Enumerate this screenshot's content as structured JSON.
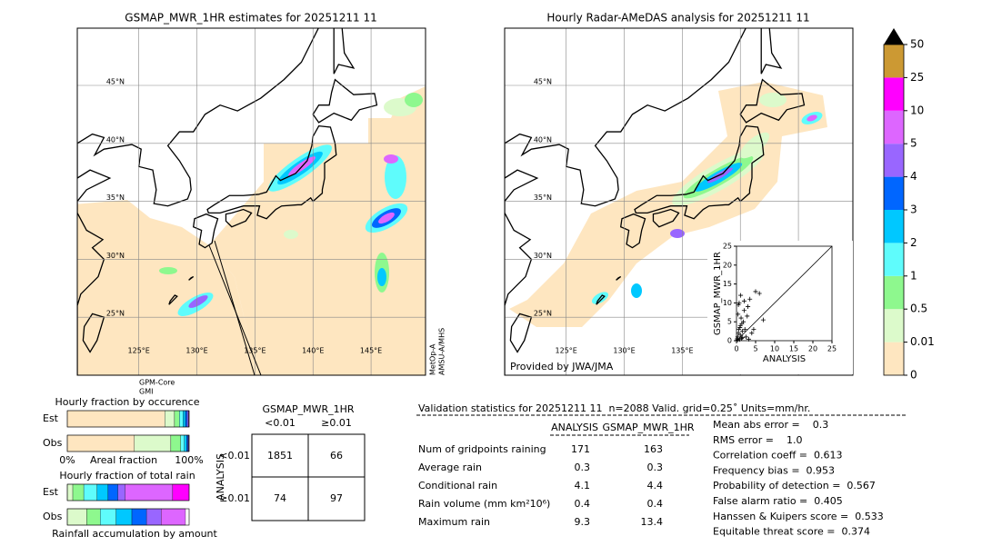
{
  "maps": [
    {
      "title": "GSMAP_MWR_1HR estimates for 20251211 11",
      "lat_labels": [
        "45°N",
        "40°N",
        "35°N",
        "30°N",
        "25°N"
      ],
      "lon_labels": [
        "125°E",
        "130°E",
        "135°E",
        "140°E",
        "145°E"
      ],
      "notes": [
        "GPM-Core",
        "GMI"
      ],
      "side_notes": [
        "MetOp-A",
        "AMSU-A/MHS"
      ]
    },
    {
      "title": "Hourly Radar-AMeDAS analysis for 20251211 11",
      "lat_labels": [
        "45°N",
        "40°N",
        "35°N",
        "30°N",
        "25°N"
      ],
      "lon_labels": [
        "125°E",
        "130°E",
        "135°E"
      ],
      "credit": "Provided by JWA/JMA"
    }
  ],
  "chart_data": [
    {
      "type": "colorbar",
      "yticks": [
        0,
        0.01,
        0.5,
        1,
        2,
        3,
        4,
        5,
        10,
        25,
        50
      ],
      "colors": [
        "#fee6c0",
        "#dcfacb",
        "#8ef88e",
        "#5ffcfc",
        "#00c8ff",
        "#0066ff",
        "#9966ff",
        "#dd66ff",
        "#ff00ff",
        "#cc9933"
      ],
      "extend_color": "#000000"
    },
    {
      "type": "scatter",
      "xlabel": "ANALYSIS",
      "ylabel": "GSMAP_MWR_1HR",
      "color": "#000000",
      "xlim": [
        0,
        25
      ],
      "ylim": [
        0,
        25
      ],
      "xticks": [
        0,
        5,
        10,
        15,
        20,
        25
      ],
      "yticks": [
        0,
        5,
        10,
        15,
        20,
        25
      ],
      "x": [
        0.2,
        0.3,
        0.5,
        0.6,
        0.8,
        1,
        1,
        1.2,
        1.5,
        1.8,
        2,
        2.2,
        2.5,
        0.4,
        0.7,
        1.1,
        1.4,
        3,
        3.5,
        4,
        0.3,
        0.9,
        1.6,
        2.8,
        5,
        6,
        0.5,
        1.3,
        2,
        4.5,
        7,
        3.2
      ],
      "y": [
        0.5,
        1,
        2,
        3,
        0.3,
        4,
        1.5,
        6,
        2.5,
        5,
        8,
        3,
        1,
        7,
        10,
        12,
        4.5,
        9,
        11,
        2,
        0.2,
        3.5,
        0.8,
        6.5,
        13,
        12.5,
        9.5,
        0.6,
        10.5,
        3,
        5.5,
        0.4
      ]
    },
    {
      "type": "stacked-hbar",
      "title": "Hourly fraction by occurence",
      "xlabel": "Areal fraction",
      "categories": [
        "Est",
        "Obs"
      ],
      "xlim": [
        0,
        100
      ],
      "xticks": [
        {
          "value": 0,
          "label": "0%"
        },
        {
          "value": 100,
          "label": "100%"
        }
      ],
      "series": [
        {
          "color": "#fee6c0",
          "values": [
            80,
            55
          ]
        },
        {
          "color": "#dcfacb",
          "values": [
            8,
            30
          ]
        },
        {
          "color": "#8ef88e",
          "values": [
            4,
            8
          ]
        },
        {
          "color": "#5ffcfc",
          "values": [
            3,
            3
          ]
        },
        {
          "color": "#00c8ff",
          "values": [
            2,
            2
          ]
        },
        {
          "color": "#0066ff",
          "values": [
            1.5,
            1
          ]
        },
        {
          "color": "#9966ff",
          "values": [
            1,
            0.5
          ]
        },
        {
          "color": "#dd66ff",
          "values": [
            0.5,
            0.5
          ]
        }
      ]
    },
    {
      "type": "stacked-hbar",
      "title": "Hourly fraction of total rain",
      "xlabel": "Rainfall accumulation by amount",
      "categories": [
        "Est",
        "Obs"
      ],
      "xlim": [
        0,
        100
      ],
      "series": [
        {
          "color": "#dcfacb",
          "values": [
            4.5,
            16
          ]
        },
        {
          "color": "#8ef88e",
          "values": [
            9,
            11
          ]
        },
        {
          "color": "#5ffcfc",
          "values": [
            11,
            13
          ]
        },
        {
          "color": "#00c8ff",
          "values": [
            9,
            13
          ]
        },
        {
          "color": "#0066ff",
          "values": [
            8,
            12
          ]
        },
        {
          "color": "#9966ff",
          "values": [
            6,
            12
          ]
        },
        {
          "color": "#dd66ff",
          "values": [
            39,
            20
          ]
        },
        {
          "color": "#ff00ff",
          "values": [
            13.5,
            0
          ]
        }
      ]
    }
  ],
  "contingency": {
    "title": "GSMAP_MWR_1HR",
    "col_labels": [
      "<0.01",
      "≥0.01"
    ],
    "row_axis": "ANALYSIS",
    "row_labels": [
      "<0.01",
      "≥0.01"
    ],
    "cells": [
      [
        1851,
        66
      ],
      [
        74,
        97
      ]
    ]
  },
  "validation": {
    "header": "Validation statistics for 20251211 11  n=2088 Valid. grid=0.25˚ Units=mm/hr.",
    "columns": [
      "ANALYSIS",
      "GSMAP_MWR_1HR"
    ],
    "rows": [
      {
        "label": "Num of gridpoints raining",
        "values": [
          171,
          163
        ]
      },
      {
        "label": "Average rain",
        "values": [
          0.3,
          0.3
        ]
      },
      {
        "label": "Conditional rain",
        "values": [
          4.1,
          4.4
        ]
      },
      {
        "label": "Rain volume (mm km²10⁶)",
        "values": [
          0.4,
          0.4
        ]
      },
      {
        "label": "Maximum rain",
        "values": [
          9.3,
          13.4
        ]
      }
    ],
    "scores": [
      "Mean abs error =    0.3",
      "RMS error =    1.0",
      "Correlation coeff =  0.613",
      "Frequency bias =  0.953",
      "Probability of detection =  0.567",
      "False alarm ratio =  0.405",
      "Hanssen & Kuipers score =  0.533",
      "Equitable threat score =  0.374"
    ]
  }
}
